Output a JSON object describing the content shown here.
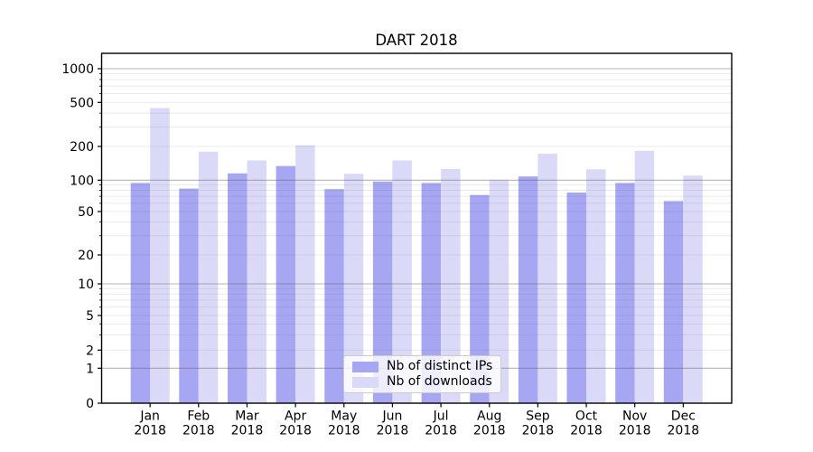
{
  "chart_data": {
    "type": "bar",
    "title": "DART 2018",
    "categories": [
      "Jan",
      "Feb",
      "Mar",
      "Apr",
      "May",
      "Jun",
      "Jul",
      "Aug",
      "Sep",
      "Oct",
      "Nov",
      "Dec"
    ],
    "category_year": "2018",
    "series": [
      {
        "name": "Nb of distinct IPs",
        "color": "#a6a6f3",
        "values": [
          94,
          83,
          115,
          134,
          82,
          97,
          94,
          72,
          108,
          76,
          94,
          63
        ]
      },
      {
        "name": "Nb of downloads",
        "color": "#dadaf8",
        "values": [
          445,
          180,
          150,
          205,
          114,
          150,
          126,
          100,
          172,
          125,
          183,
          110
        ]
      }
    ],
    "xlabel": "",
    "ylabel": "",
    "yscale": "symlog",
    "yticks": [
      0,
      1,
      2,
      5,
      10,
      20,
      50,
      100,
      200,
      500,
      1000
    ],
    "ylim": [
      0,
      1370
    ],
    "grid_visible": "major+minor horizontal",
    "legend_position": "inside lower center"
  },
  "colors": {
    "background": "#ffffff",
    "spine": "#000000",
    "bar_distinct_ips": "#a6a6f3",
    "bar_downloads": "#dadaf8",
    "grid_gray": "#5a5a5a",
    "grid_major_opacity": 0.45,
    "grid_minor_opacity": 0.12,
    "legend_border": "#cccccc",
    "text": "#000000"
  }
}
